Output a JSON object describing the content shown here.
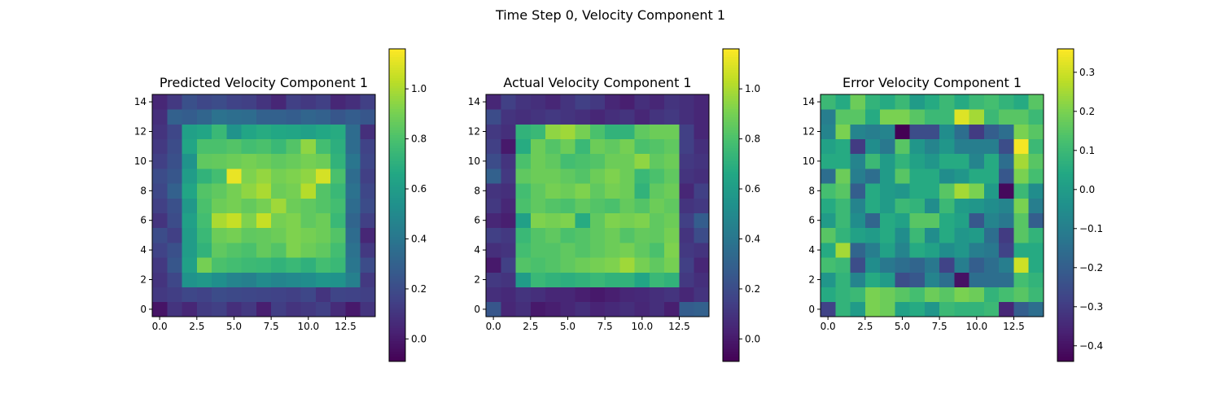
{
  "figure": {
    "suptitle": "Time Step 0, Velocity Component 1"
  },
  "chart_data": [
    {
      "type": "heatmap",
      "title": "Predicted Velocity Component 1",
      "xlabel": "",
      "ylabel": "",
      "rows": 15,
      "cols": 15,
      "origin": "lower",
      "xlim": [
        -0.5,
        14.5
      ],
      "ylim": [
        -0.5,
        14.5
      ],
      "xticks": [
        "0.0",
        "2.5",
        "5.0",
        "7.5",
        "10.0",
        "12.5"
      ],
      "yticks": [
        "0",
        "2",
        "4",
        "6",
        "8",
        "10",
        "12",
        "14"
      ],
      "colormap": "viridis",
      "vmin": -0.09,
      "vmax": 1.16,
      "colorbar_ticks": [
        "0.0",
        "0.2",
        "0.4",
        "0.6",
        "0.8",
        "1.0"
      ],
      "grid": false,
      "values": [
        [
          -0.02,
          0.1,
          0.05,
          0.13,
          0.15,
          0.08,
          0.12,
          0.02,
          0.14,
          0.1,
          0.12,
          0.15,
          0.07,
          0.0,
          0.1
        ],
        [
          0.12,
          0.14,
          0.18,
          0.16,
          0.2,
          0.19,
          0.18,
          0.17,
          0.16,
          0.15,
          0.18,
          0.1,
          0.17,
          0.16,
          0.15
        ],
        [
          0.1,
          0.18,
          0.55,
          0.58,
          0.53,
          0.47,
          0.45,
          0.51,
          0.48,
          0.5,
          0.52,
          0.56,
          0.55,
          0.45,
          0.12
        ],
        [
          0.12,
          0.25,
          0.62,
          0.9,
          0.8,
          0.78,
          0.76,
          0.75,
          0.72,
          0.75,
          0.71,
          0.78,
          0.75,
          0.4,
          0.2
        ],
        [
          0.16,
          0.22,
          0.6,
          0.72,
          0.85,
          0.82,
          0.8,
          0.86,
          0.82,
          0.92,
          0.88,
          0.85,
          0.78,
          0.38,
          0.12
        ],
        [
          0.2,
          0.15,
          0.6,
          0.75,
          0.88,
          0.9,
          0.85,
          0.86,
          0.88,
          0.92,
          0.9,
          0.88,
          0.82,
          0.35,
          0.05
        ],
        [
          0.1,
          0.2,
          0.62,
          0.78,
          1.0,
          1.05,
          0.92,
          1.05,
          0.9,
          0.92,
          0.85,
          0.88,
          0.75,
          0.32,
          0.15
        ],
        [
          0.15,
          0.22,
          0.58,
          0.8,
          0.88,
          0.9,
          0.86,
          0.9,
          0.98,
          0.88,
          0.85,
          0.82,
          0.78,
          0.35,
          0.2
        ],
        [
          0.18,
          0.3,
          0.65,
          0.82,
          0.85,
          0.9,
          0.95,
          1.0,
          0.88,
          0.9,
          1.02,
          0.82,
          0.75,
          0.38,
          0.18
        ],
        [
          0.2,
          0.25,
          0.6,
          0.72,
          0.78,
          1.12,
          0.92,
          0.96,
          0.9,
          0.92,
          0.95,
          1.08,
          0.8,
          0.35,
          0.15
        ],
        [
          0.15,
          0.22,
          0.55,
          0.85,
          0.86,
          0.88,
          0.9,
          0.88,
          0.85,
          0.87,
          0.9,
          0.88,
          0.72,
          0.4,
          0.18
        ],
        [
          0.12,
          0.2,
          0.65,
          0.8,
          0.8,
          0.82,
          0.78,
          0.8,
          0.75,
          0.82,
          0.95,
          0.78,
          0.7,
          0.35,
          0.16
        ],
        [
          0.1,
          0.18,
          0.62,
          0.65,
          0.75,
          0.55,
          0.65,
          0.68,
          0.66,
          0.65,
          0.62,
          0.66,
          0.68,
          0.35,
          0.08
        ],
        [
          0.08,
          0.3,
          0.28,
          0.32,
          0.38,
          0.36,
          0.35,
          0.3,
          0.3,
          0.28,
          0.32,
          0.3,
          0.25,
          0.28,
          0.25
        ],
        [
          0.05,
          0.12,
          0.22,
          0.18,
          0.2,
          0.16,
          0.15,
          0.1,
          0.05,
          0.15,
          0.12,
          0.15,
          0.05,
          0.08,
          0.15
        ]
      ]
    },
    {
      "type": "heatmap",
      "title": "Actual Velocity Component 1",
      "xlabel": "",
      "ylabel": "",
      "rows": 15,
      "cols": 15,
      "origin": "lower",
      "xlim": [
        -0.5,
        14.5
      ],
      "ylim": [
        -0.5,
        14.5
      ],
      "xticks": [
        "0.0",
        "2.5",
        "5.0",
        "7.5",
        "10.0",
        "12.5"
      ],
      "yticks": [
        "0",
        "2",
        "4",
        "6",
        "8",
        "10",
        "12",
        "14"
      ],
      "colormap": "viridis",
      "vmin": -0.09,
      "vmax": 1.16,
      "colorbar_ticks": [
        "0.0",
        "0.2",
        "0.4",
        "0.6",
        "0.8",
        "1.0"
      ],
      "grid": false,
      "values": [
        [
          0.25,
          0.05,
          0.08,
          0.0,
          0.02,
          0.05,
          0.08,
          0.04,
          0.06,
          0.08,
          0.05,
          0.08,
          0.02,
          0.28,
          0.3
        ],
        [
          0.08,
          0.06,
          0.1,
          0.08,
          0.05,
          0.05,
          0.02,
          0.0,
          0.02,
          0.05,
          0.06,
          0.08,
          0.1,
          0.05,
          0.1
        ],
        [
          0.12,
          0.1,
          0.6,
          0.75,
          0.72,
          0.7,
          0.72,
          0.75,
          0.72,
          0.72,
          0.65,
          0.75,
          0.72,
          0.12,
          0.08
        ],
        [
          0.0,
          0.15,
          0.82,
          0.8,
          0.82,
          0.85,
          0.88,
          0.9,
          0.92,
          0.98,
          0.9,
          0.85,
          0.9,
          0.15,
          0.05
        ],
        [
          0.08,
          0.1,
          0.78,
          0.82,
          0.82,
          0.85,
          0.82,
          0.85,
          0.88,
          0.9,
          0.85,
          0.8,
          0.92,
          0.12,
          0.1
        ],
        [
          0.15,
          0.12,
          0.75,
          0.82,
          0.85,
          0.8,
          0.82,
          0.85,
          0.88,
          0.82,
          0.86,
          0.85,
          0.9,
          0.1,
          0.2
        ],
        [
          0.05,
          0.02,
          0.62,
          0.92,
          0.9,
          0.92,
          0.68,
          0.85,
          0.92,
          0.9,
          0.92,
          0.85,
          0.88,
          0.15,
          0.28
        ],
        [
          0.12,
          0.05,
          0.8,
          0.85,
          0.82,
          0.8,
          0.85,
          0.82,
          0.8,
          0.86,
          0.82,
          0.88,
          0.85,
          0.1,
          0.12
        ],
        [
          0.1,
          0.08,
          0.78,
          0.85,
          0.9,
          0.88,
          0.92,
          0.85,
          0.9,
          0.88,
          0.72,
          0.85,
          0.88,
          0.05,
          0.15
        ],
        [
          0.3,
          0.12,
          0.85,
          0.88,
          0.88,
          0.85,
          0.82,
          0.88,
          0.92,
          0.88,
          0.75,
          0.8,
          0.85,
          0.1,
          0.08
        ],
        [
          0.2,
          0.1,
          0.8,
          0.88,
          0.85,
          0.78,
          0.8,
          0.82,
          0.88,
          0.88,
          0.95,
          0.85,
          0.88,
          0.12,
          0.1
        ],
        [
          0.15,
          0.0,
          0.68,
          0.88,
          0.82,
          0.88,
          0.75,
          0.88,
          0.85,
          0.9,
          0.8,
          0.82,
          0.85,
          0.15,
          0.08
        ],
        [
          0.12,
          0.08,
          0.72,
          0.75,
          0.95,
          0.98,
          0.9,
          0.8,
          0.72,
          0.72,
          0.85,
          0.88,
          0.88,
          0.15,
          0.05
        ],
        [
          0.2,
          0.1,
          0.08,
          0.1,
          0.12,
          0.1,
          0.08,
          0.05,
          0.08,
          0.1,
          0.05,
          0.1,
          0.12,
          0.08,
          0.05
        ],
        [
          0.05,
          0.15,
          0.1,
          0.08,
          0.05,
          0.1,
          0.15,
          0.12,
          0.05,
          0.02,
          0.08,
          0.05,
          0.1,
          0.08,
          0.05
        ]
      ]
    },
    {
      "type": "heatmap",
      "title": "Error Velocity Component 1",
      "xlabel": "",
      "ylabel": "",
      "rows": 15,
      "cols": 15,
      "origin": "lower",
      "xlim": [
        -0.5,
        14.5
      ],
      "ylim": [
        -0.5,
        14.5
      ],
      "xticks": [
        "0.0",
        "2.5",
        "5.0",
        "7.5",
        "10.0",
        "12.5"
      ],
      "yticks": [
        "0",
        "2",
        "4",
        "6",
        "8",
        "10",
        "12",
        "14"
      ],
      "colormap": "viridis",
      "vmin": -0.44,
      "vmax": 0.36,
      "colorbar_ticks": [
        "−0.4",
        "−0.3",
        "−0.2",
        "−0.1",
        "0.0",
        "0.1",
        "0.2",
        "0.3"
      ],
      "grid": false,
      "values": [
        [
          -0.28,
          0.08,
          0.0,
          0.2,
          0.18,
          0.02,
          0.05,
          -0.02,
          0.1,
          0.08,
          0.08,
          0.1,
          -0.35,
          -0.2,
          -0.15
        ],
        [
          0.05,
          0.08,
          0.1,
          0.2,
          0.18,
          0.15,
          0.12,
          0.18,
          0.15,
          0.2,
          0.18,
          0.08,
          0.12,
          0.15,
          0.1
        ],
        [
          -0.02,
          0.08,
          -0.08,
          0.05,
          0.0,
          -0.25,
          -0.22,
          -0.08,
          -0.15,
          -0.4,
          -0.15,
          -0.15,
          -0.15,
          0.12,
          0.08
        ],
        [
          0.12,
          0.1,
          -0.25,
          -0.05,
          -0.12,
          -0.15,
          -0.18,
          -0.12,
          -0.28,
          -0.1,
          -0.2,
          -0.15,
          -0.1,
          0.3,
          0.05
        ],
        [
          0.05,
          0.25,
          -0.18,
          -0.1,
          0.02,
          -0.08,
          0.05,
          0.02,
          -0.05,
          -0.02,
          -0.1,
          -0.12,
          -0.28,
          0.05,
          0.05
        ],
        [
          0.15,
          0.08,
          0.02,
          0.0,
          0.05,
          -0.05,
          0.1,
          -0.05,
          0.05,
          -0.02,
          0.0,
          -0.15,
          -0.3,
          0.15,
          0.08
        ],
        [
          0.0,
          0.1,
          -0.05,
          -0.18,
          0.05,
          0.02,
          0.15,
          0.15,
          0.05,
          0.02,
          -0.22,
          -0.08,
          -0.12,
          0.15,
          -0.2
        ],
        [
          0.05,
          0.1,
          -0.08,
          0.05,
          0.0,
          0.1,
          0.08,
          -0.05,
          0.1,
          0.0,
          -0.02,
          -0.05,
          -0.08,
          0.2,
          -0.1
        ],
        [
          0.12,
          0.15,
          -0.2,
          0.05,
          0.0,
          -0.02,
          0.05,
          0.05,
          0.15,
          0.25,
          0.2,
          0.0,
          -0.42,
          0.1,
          -0.05
        ],
        [
          -0.15,
          0.18,
          -0.1,
          -0.15,
          0.0,
          0.15,
          0.05,
          0.05,
          -0.05,
          -0.02,
          0.05,
          0.05,
          -0.22,
          0.2,
          0.12
        ],
        [
          0.05,
          0.05,
          -0.08,
          0.1,
          0.0,
          0.08,
          0.02,
          -0.02,
          0.05,
          0.05,
          -0.08,
          0.05,
          -0.15,
          0.25,
          0.15
        ],
        [
          0.02,
          0.05,
          -0.3,
          -0.05,
          -0.12,
          0.15,
          -0.02,
          -0.08,
          -0.02,
          -0.1,
          -0.1,
          -0.1,
          -0.25,
          0.35,
          0.1
        ],
        [
          -0.08,
          0.2,
          -0.08,
          -0.1,
          -0.08,
          -0.44,
          -0.25,
          -0.25,
          -0.05,
          -0.15,
          -0.3,
          -0.2,
          -0.15,
          0.2,
          0.15
        ],
        [
          -0.1,
          0.15,
          0.15,
          0.05,
          0.2,
          0.2,
          0.15,
          0.1,
          0.1,
          0.32,
          0.25,
          0.1,
          0.15,
          0.15,
          0.1
        ],
        [
          0.1,
          0.05,
          0.18,
          0.08,
          0.05,
          0.1,
          0.0,
          0.05,
          0.1,
          0.05,
          0.1,
          0.12,
          0.08,
          0.05,
          0.15
        ]
      ]
    }
  ]
}
